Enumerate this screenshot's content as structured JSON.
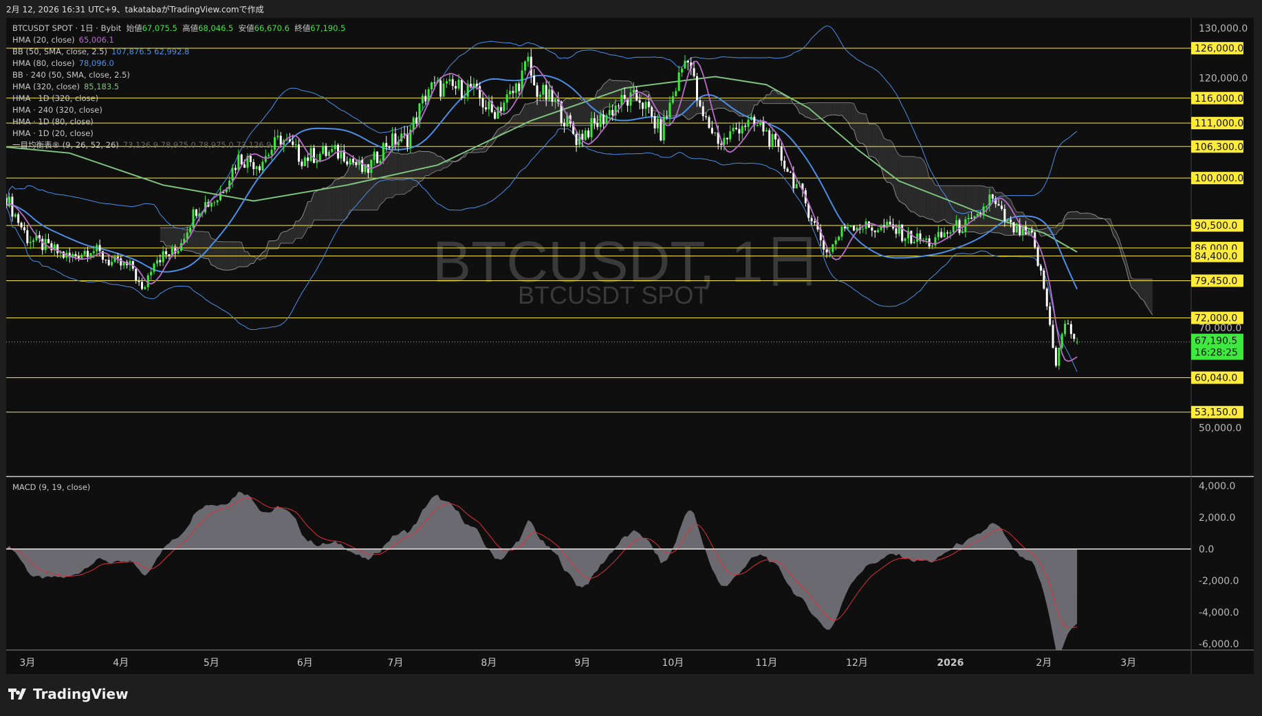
{
  "header": {
    "caption": "2月 12, 2026 16:31 UTC+9、takatabaがTradingView.comで作成"
  },
  "legend": {
    "symbol": "BTCUSDT SPOT · 1日 · Bybit",
    "open_label": "始値",
    "open": "67,075.5",
    "high_label": "高値",
    "high": "68,046.5",
    "low_label": "安値",
    "low": "66,670.6",
    "close_label": "終値",
    "close": "67,190.5",
    "indicators": [
      {
        "name": "HMA (20, close)",
        "values": "65,006.1",
        "color": "#b86ec8"
      },
      {
        "name": "BB (50, SMA, close, 2.5)",
        "values": "107,876.5  62,992.8",
        "color": "#4d8fe8"
      },
      {
        "name": "HMA (80, close)",
        "values": "78,096.0",
        "color": "#4d8fe8"
      },
      {
        "name": "BB · 240 (50, SMA, close, 2.5)",
        "values": ""
      },
      {
        "name": "HMA (320, close)",
        "values": "85,183.5",
        "color": "#7fc57f"
      },
      {
        "name": "HMA · 1D (320, close)",
        "values": ""
      },
      {
        "name": "HMA · 240 (320, close)",
        "values": ""
      },
      {
        "name": "HMA · 1D (80, close)",
        "values": ""
      },
      {
        "name": "HMA · 1D (20, close)",
        "values": ""
      },
      {
        "name": "一目均衡表® (9, 26, 52, 26)",
        "values": "73,126.9  78,975.0  78,975.0  73,126.9"
      }
    ]
  },
  "watermark": {
    "line1": "BTCUSDT, 1日",
    "line2": "BTCUSDT SPOT"
  },
  "footer": {
    "brand": "TradingView"
  },
  "colors": {
    "up": "#3ee83e",
    "down": "#ffffff",
    "level": "#ffeb3b",
    "hma20": "#b86ec8",
    "hma80": "#4d8fe8",
    "bb": "#4d8fe8",
    "hma320": "#7fc57f",
    "cloud": "#2a2a2a",
    "macd": "#6a6a70",
    "signal": "#e0303a",
    "last_price": "#3ee83e"
  },
  "chart_data": [
    {
      "type": "candlestick",
      "timeframe": "1日",
      "y_axis": {
        "ticks": [
          130000,
          120000,
          70000,
          50000
        ],
        "ylim": [
          40000,
          132000
        ]
      },
      "x_axis": {
        "ticks": [
          "3月",
          "4月",
          "5月",
          "6月",
          "7月",
          "8月",
          "9月",
          "10月",
          "11月",
          "12月",
          "2026",
          "2月",
          "3月"
        ]
      },
      "last_price": {
        "value": "67,190.5",
        "countdown": "16:28:25"
      },
      "levels": [
        "126,000.0",
        "116,000.0",
        "111,000.0",
        "106,300.0",
        "100,000.0",
        "90,500.0",
        "86,000.0",
        "84,400.0",
        "79,450.0",
        "72,000.0",
        "60,040.0",
        "53,150.0"
      ],
      "axis_tick_labels": [
        "130,000.0",
        "120,000.0",
        "70,000.0",
        "50,000.0"
      ],
      "closes": [
        [
          "2025-02-22",
          96000
        ],
        [
          "2025-03-01",
          88000
        ],
        [
          "2025-03-08",
          86000
        ],
        [
          "2025-03-15",
          84000
        ],
        [
          "2025-03-22",
          86000
        ],
        [
          "2025-03-29",
          83000
        ],
        [
          "2025-04-05",
          82000
        ],
        [
          "2025-04-08",
          77000
        ],
        [
          "2025-04-12",
          84000
        ],
        [
          "2025-04-19",
          85000
        ],
        [
          "2025-04-26",
          94000
        ],
        [
          "2025-05-03",
          96000
        ],
        [
          "2025-05-10",
          104000
        ],
        [
          "2025-05-17",
          103000
        ],
        [
          "2025-05-24",
          108000
        ],
        [
          "2025-05-31",
          104000
        ],
        [
          "2025-06-07",
          105000
        ],
        [
          "2025-06-14",
          105000
        ],
        [
          "2025-06-21",
          101000
        ],
        [
          "2025-06-28",
          107000
        ],
        [
          "2025-07-05",
          108000
        ],
        [
          "2025-07-12",
          118000
        ],
        [
          "2025-07-19",
          118000
        ],
        [
          "2025-07-26",
          118000
        ],
        [
          "2025-08-02",
          113000
        ],
        [
          "2025-08-09",
          117000
        ],
        [
          "2025-08-14",
          123000
        ],
        [
          "2025-08-16",
          118000
        ],
        [
          "2025-08-23",
          115000
        ],
        [
          "2025-08-30",
          108000
        ],
        [
          "2025-09-06",
          111000
        ],
        [
          "2025-09-13",
          115000
        ],
        [
          "2025-09-20",
          116000
        ],
        [
          "2025-09-27",
          109000
        ],
        [
          "2025-10-04",
          122000
        ],
        [
          "2025-10-06",
          125000
        ],
        [
          "2025-10-10",
          113000
        ],
        [
          "2025-10-17",
          107000
        ],
        [
          "2025-10-24",
          111000
        ],
        [
          "2025-10-31",
          110000
        ],
        [
          "2025-11-07",
          103000
        ],
        [
          "2025-11-14",
          95000
        ],
        [
          "2025-11-21",
          85000
        ],
        [
          "2025-11-28",
          91000
        ],
        [
          "2025-12-05",
          90000
        ],
        [
          "2025-12-12",
          90000
        ],
        [
          "2025-12-19",
          88000
        ],
        [
          "2025-12-26",
          87000
        ],
        [
          "2026-01-02",
          90000
        ],
        [
          "2026-01-09",
          91000
        ],
        [
          "2026-01-14",
          96000
        ],
        [
          "2026-01-21",
          90000
        ],
        [
          "2026-01-28",
          88000
        ],
        [
          "2026-02-01",
          78000
        ],
        [
          "2026-02-05",
          63000
        ],
        [
          "2026-02-08",
          71000
        ],
        [
          "2026-02-12",
          67190.5
        ]
      ],
      "hma320": [
        [
          "2025-02-22",
          106200
        ],
        [
          "2025-03-15",
          105000
        ],
        [
          "2025-04-15",
          98600
        ],
        [
          "2025-05-15",
          95400
        ],
        [
          "2025-06-15",
          98600
        ],
        [
          "2025-07-15",
          102600
        ],
        [
          "2025-08-15",
          111500
        ],
        [
          "2025-09-15",
          118000
        ],
        [
          "2025-10-15",
          120300
        ],
        [
          "2025-11-01",
          118700
        ],
        [
          "2025-11-15",
          114000
        ],
        [
          "2025-12-01",
          105800
        ],
        [
          "2025-12-15",
          99400
        ],
        [
          "2026-01-01",
          95400
        ],
        [
          "2026-01-15",
          92000
        ],
        [
          "2026-02-01",
          89000
        ],
        [
          "2026-02-12",
          85183.5
        ]
      ]
    },
    {
      "type": "area",
      "title": "MACD (9, 19, close)",
      "y_axis": {
        "ticks": [
          "4,000.0",
          "2,000.0",
          "0.0",
          "-2,000.0",
          "-4,000.0",
          "-6,000.0"
        ],
        "ylim": [
          -6500,
          4500
        ]
      }
    }
  ]
}
